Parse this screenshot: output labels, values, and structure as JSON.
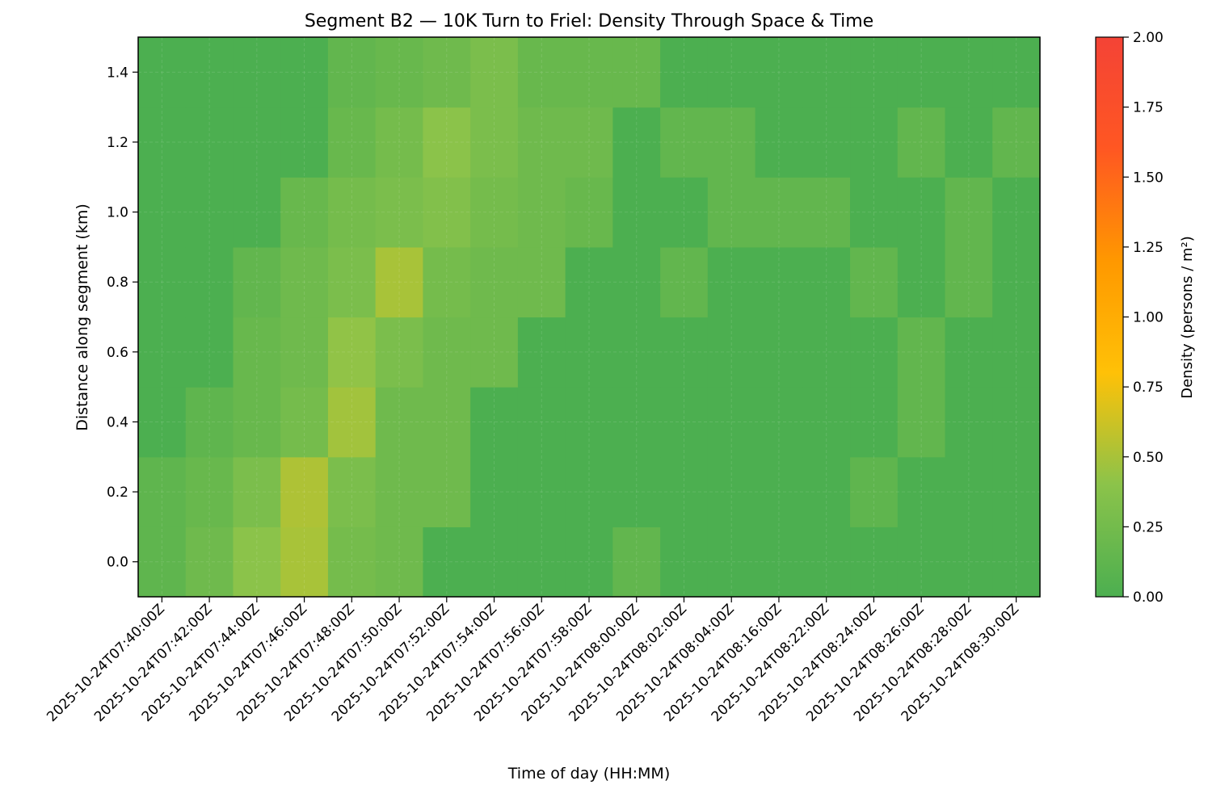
{
  "chart_data": {
    "type": "heatmap",
    "title": "Segment B2 — 10K Turn to Friel: Density Through Space & Time",
    "xlabel": "Time of day (HH:MM)",
    "ylabel": "Distance along segment (km)",
    "x_categories": [
      "2025-10-24T07:40:00Z",
      "2025-10-24T07:42:00Z",
      "2025-10-24T07:44:00Z",
      "2025-10-24T07:46:00Z",
      "2025-10-24T07:48:00Z",
      "2025-10-24T07:50:00Z",
      "2025-10-24T07:52:00Z",
      "2025-10-24T07:54:00Z",
      "2025-10-24T07:56:00Z",
      "2025-10-24T07:58:00Z",
      "2025-10-24T08:00:00Z",
      "2025-10-24T08:02:00Z",
      "2025-10-24T08:04:00Z",
      "2025-10-24T08:16:00Z",
      "2025-10-24T08:22:00Z",
      "2025-10-24T08:24:00Z",
      "2025-10-24T08:26:00Z",
      "2025-10-24T08:28:00Z",
      "2025-10-24T08:30:00Z"
    ],
    "y_rows": [
      0.0,
      0.2,
      0.4,
      0.6,
      0.8,
      1.0,
      1.2,
      1.4
    ],
    "ylim": [
      -0.1,
      1.5
    ],
    "y_ticks": [
      "0.0",
      "0.2",
      "0.4",
      "0.6",
      "0.8",
      "1.0",
      "1.2",
      "1.4"
    ],
    "grid": true,
    "values": [
      [
        0.12,
        0.22,
        0.4,
        0.5,
        0.26,
        0.22,
        0.0,
        0.0,
        0.0,
        0.0,
        0.14,
        0.0,
        0.0,
        0.0,
        0.0,
        0.0,
        0.0,
        0.0,
        0.0
      ],
      [
        0.12,
        0.18,
        0.3,
        0.52,
        0.3,
        0.22,
        0.22,
        0.0,
        0.0,
        0.0,
        0.0,
        0.0,
        0.0,
        0.0,
        0.0,
        0.12,
        0.0,
        0.0,
        0.0
      ],
      [
        0.0,
        0.12,
        0.18,
        0.26,
        0.48,
        0.22,
        0.22,
        0.0,
        0.0,
        0.0,
        0.0,
        0.0,
        0.0,
        0.0,
        0.0,
        0.0,
        0.14,
        0.0,
        0.0
      ],
      [
        0.0,
        0.0,
        0.18,
        0.22,
        0.42,
        0.3,
        0.22,
        0.22,
        0.0,
        0.0,
        0.0,
        0.0,
        0.0,
        0.0,
        0.0,
        0.0,
        0.14,
        0.0,
        0.0
      ],
      [
        0.0,
        0.0,
        0.14,
        0.22,
        0.3,
        0.5,
        0.26,
        0.22,
        0.22,
        0.0,
        0.0,
        0.14,
        0.0,
        0.0,
        0.0,
        0.14,
        0.0,
        0.14,
        0.0
      ],
      [
        0.0,
        0.0,
        0.0,
        0.18,
        0.26,
        0.3,
        0.34,
        0.26,
        0.22,
        0.18,
        0.0,
        0.0,
        0.14,
        0.14,
        0.14,
        0.0,
        0.0,
        0.14,
        0.0
      ],
      [
        0.0,
        0.0,
        0.0,
        0.0,
        0.18,
        0.26,
        0.4,
        0.3,
        0.22,
        0.22,
        0.0,
        0.14,
        0.14,
        0.0,
        0.0,
        0.0,
        0.14,
        0.0,
        0.14
      ],
      [
        0.0,
        0.0,
        0.0,
        0.0,
        0.14,
        0.18,
        0.22,
        0.3,
        0.18,
        0.18,
        0.18,
        0.0,
        0.0,
        0.0,
        0.0,
        0.0,
        0.0,
        0.0,
        0.0
      ]
    ],
    "colorbar": {
      "label": "Density (persons / m²)",
      "min": 0.0,
      "max": 2.0,
      "ticks": [
        "0.00",
        "0.25",
        "0.50",
        "0.75",
        "1.00",
        "1.25",
        "1.50",
        "1.75",
        "2.00"
      ],
      "colors": [
        "#4caf50",
        "#8bc34a",
        "#ffc107",
        "#ff9800",
        "#ff5722",
        "#f44336"
      ]
    }
  }
}
